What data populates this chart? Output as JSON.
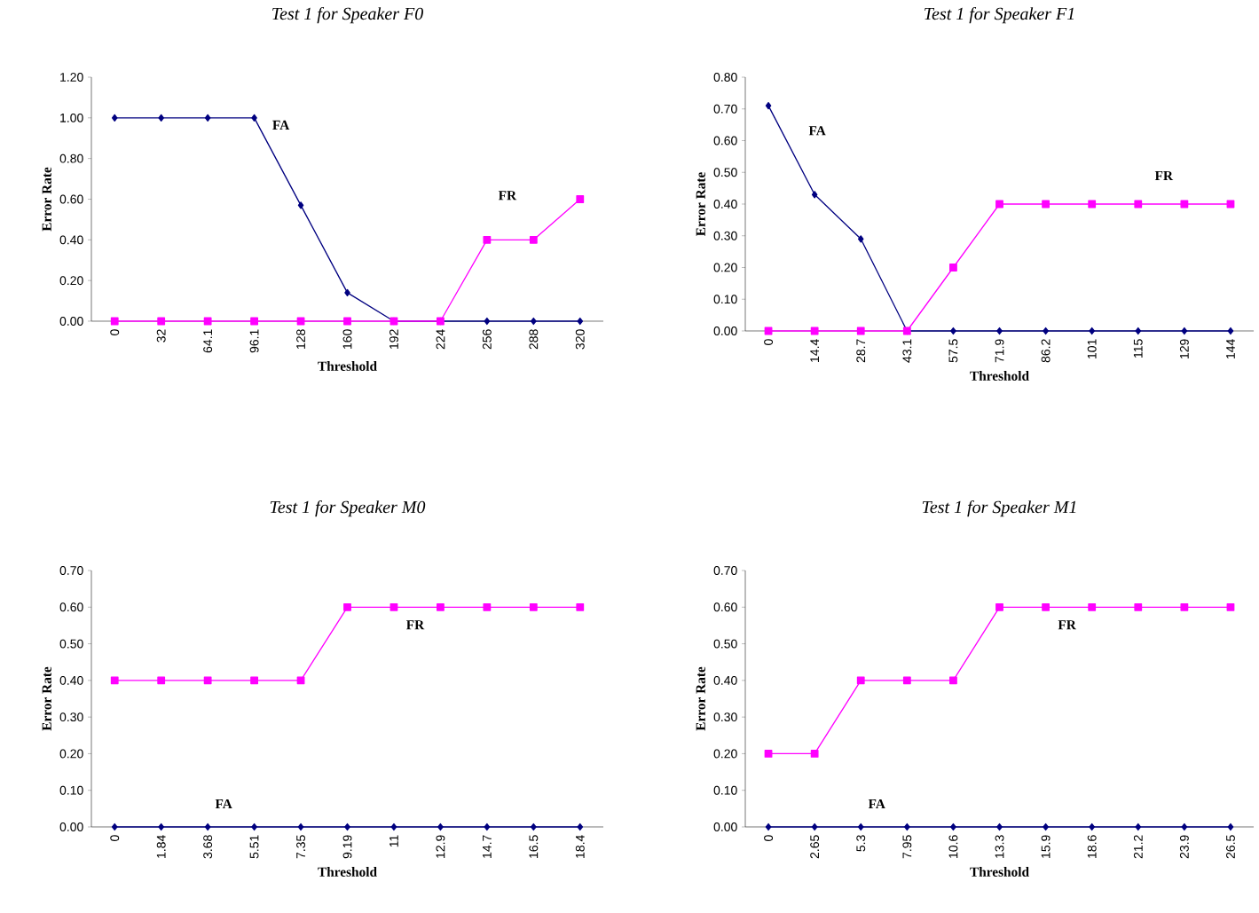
{
  "chart_data": [
    {
      "type": "line",
      "title": "Test 1 for Speaker F0",
      "xlabel": "Threshold",
      "ylabel": "Error Rate",
      "categories": [
        "0",
        "32",
        "64.1",
        "96.1",
        "128",
        "160",
        "192",
        "224",
        "256",
        "288",
        "320"
      ],
      "series": [
        {
          "name": "FA",
          "color": "#000080",
          "marker": "diamond",
          "values": [
            1.0,
            1.0,
            1.0,
            1.0,
            0.57,
            0.14,
            0,
            0,
            0,
            0,
            0
          ]
        },
        {
          "name": "FR",
          "color": "#ff00ff",
          "marker": "square",
          "values": [
            0,
            0,
            0,
            0,
            0,
            0,
            0,
            0,
            0.4,
            0.4,
            0.6
          ]
        }
      ],
      "ylim": [
        0,
        1.2
      ],
      "yticks": [
        {
          "value": 0,
          "label": "0.00"
        },
        {
          "value": 0.2,
          "label": "0.20"
        },
        {
          "value": 0.4,
          "label": "0.40"
        },
        {
          "value": 0.6,
          "label": "0.60"
        },
        {
          "value": 0.8,
          "label": "0.80"
        },
        {
          "value": 1.0,
          "label": "1.00"
        },
        {
          "value": 1.2,
          "label": "1.20"
        }
      ],
      "legend": false
    },
    {
      "type": "line",
      "title": "Test 1 for Speaker F1",
      "xlabel": "Threshold",
      "ylabel": "Error Rate",
      "categories": [
        "0",
        "14.4",
        "28.7",
        "43.1",
        "57.5",
        "71.9",
        "86.2",
        "101",
        "115",
        "129",
        "144"
      ],
      "series": [
        {
          "name": "FA",
          "color": "#000080",
          "marker": "diamond",
          "values": [
            0.71,
            0.43,
            0.29,
            0,
            0,
            0,
            0,
            0,
            0,
            0,
            0
          ]
        },
        {
          "name": "FR",
          "color": "#ff00ff",
          "marker": "square",
          "values": [
            0,
            0,
            0,
            0,
            0.2,
            0.4,
            0.4,
            0.4,
            0.4,
            0.4,
            0.4
          ]
        }
      ],
      "ylim": [
        0,
        0.8
      ],
      "yticks": [
        {
          "value": 0,
          "label": "0.00"
        },
        {
          "value": 0.1,
          "label": "0.10"
        },
        {
          "value": 0.2,
          "label": "0.20"
        },
        {
          "value": 0.3,
          "label": "0.30"
        },
        {
          "value": 0.4,
          "label": "0.40"
        },
        {
          "value": 0.5,
          "label": "0.50"
        },
        {
          "value": 0.6,
          "label": "0.60"
        },
        {
          "value": 0.7,
          "label": "0.70"
        },
        {
          "value": 0.8,
          "label": "0.80"
        }
      ],
      "legend": false
    },
    {
      "type": "line",
      "title": "Test 1 for Speaker M0",
      "xlabel": "Threshold",
      "ylabel": "Error Rate",
      "categories": [
        "0",
        "1.84",
        "3.68",
        "5.51",
        "7.35",
        "9.19",
        "11",
        "12.9",
        "14.7",
        "16.5",
        "18.4"
      ],
      "series": [
        {
          "name": "FA",
          "color": "#000080",
          "marker": "diamond",
          "values": [
            0,
            0,
            0,
            0,
            0,
            0,
            0,
            0,
            0,
            0,
            0
          ]
        },
        {
          "name": "FR",
          "color": "#ff00ff",
          "marker": "square",
          "values": [
            0.4,
            0.4,
            0.4,
            0.4,
            0.4,
            0.6,
            0.6,
            0.6,
            0.6,
            0.6,
            0.6
          ]
        }
      ],
      "ylim": [
        0,
        0.7
      ],
      "yticks": [
        {
          "value": 0,
          "label": "0.00"
        },
        {
          "value": 0.1,
          "label": "0.10"
        },
        {
          "value": 0.2,
          "label": "0.20"
        },
        {
          "value": 0.3,
          "label": "0.30"
        },
        {
          "value": 0.4,
          "label": "0.40"
        },
        {
          "value": 0.5,
          "label": "0.50"
        },
        {
          "value": 0.6,
          "label": "0.60"
        },
        {
          "value": 0.7,
          "label": "0.70"
        }
      ],
      "legend": false
    },
    {
      "type": "line",
      "title": "Test 1 for Speaker M1",
      "xlabel": "Threshold",
      "ylabel": "Error Rate",
      "categories": [
        "0",
        "2.65",
        "5.3",
        "7.95",
        "10.6",
        "13.3",
        "15.9",
        "18.6",
        "21.2",
        "23.9",
        "26.5"
      ],
      "series": [
        {
          "name": "FA",
          "color": "#000080",
          "marker": "diamond",
          "values": [
            0,
            0,
            0,
            0,
            0,
            0,
            0,
            0,
            0,
            0,
            0
          ]
        },
        {
          "name": "FR",
          "color": "#ff00ff",
          "marker": "square",
          "values": [
            0.2,
            0.2,
            0.4,
            0.4,
            0.4,
            0.6,
            0.6,
            0.6,
            0.6,
            0.6,
            0.6
          ]
        }
      ],
      "ylim": [
        0,
        0.7
      ],
      "yticks": [
        {
          "value": 0,
          "label": "0.00"
        },
        {
          "value": 0.1,
          "label": "0.10"
        },
        {
          "value": 0.2,
          "label": "0.20"
        },
        {
          "value": 0.3,
          "label": "0.30"
        },
        {
          "value": 0.4,
          "label": "0.40"
        },
        {
          "value": 0.5,
          "label": "0.50"
        },
        {
          "value": 0.6,
          "label": "0.60"
        },
        {
          "value": 0.7,
          "label": "0.70"
        }
      ],
      "legend": false
    }
  ]
}
